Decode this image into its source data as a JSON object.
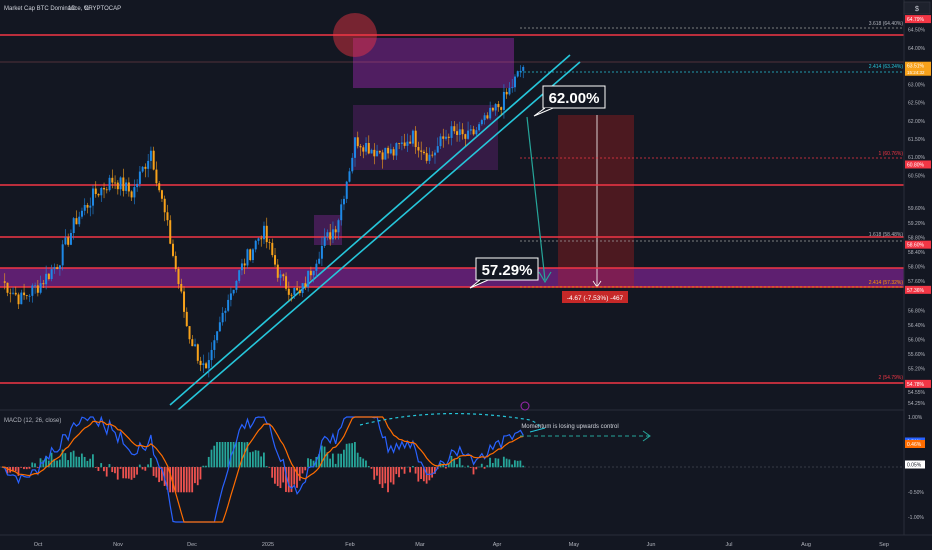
{
  "header": {
    "symbol_title": "Market Cap BTC Dominance, %",
    "interval": "1D",
    "source": "CRYPTOCAP",
    "currency_box": "$"
  },
  "price_axis": {
    "ticks": [
      "64.50%",
      "64.00%",
      "63.00%",
      "62.50%",
      "62.00%",
      "61.50%",
      "61.00%",
      "60.50%",
      "59.60%",
      "59.20%",
      "58.80%",
      "58.40%",
      "58.00%",
      "57.60%",
      "56.80%",
      "56.40%",
      "56.00%",
      "55.60%",
      "55.20%",
      "54.55%",
      "54.25%"
    ],
    "badges": [
      {
        "text": "64.79%",
        "color": "#f23645"
      },
      {
        "text": "63.51%",
        "color": "#f7a21b"
      },
      {
        "text": "60.80%",
        "color": "#f23645"
      },
      {
        "text": "58.60%",
        "color": "#f23645"
      },
      {
        "text": "57.36%",
        "color": "#f23645"
      },
      {
        "text": "54.78%",
        "color": "#f23645"
      }
    ],
    "countdown": "15:24:32"
  },
  "fib_labels": [
    "3.618 (64.40%)",
    "2.414 (63.24%)",
    "1 (60.76%)",
    "1.618 (58.48%)",
    "2.414 (57.32%)",
    "2 (54.79%)"
  ],
  "annotations": {
    "target_high": "62.00%",
    "target_low": "57.29%",
    "measure_label": "-4.67 (-7.53%) -467",
    "macd_note": "Momentum is losing upwards control"
  },
  "macd": {
    "title": "MACD (12, 26, close)",
    "ticks": [
      "1.00%",
      "0.50%",
      "-0.50%",
      "-1.00%"
    ],
    "badges": [
      {
        "text": "0.51%",
        "color": "#2962ff"
      },
      {
        "text": "0.46%",
        "color": "#ff6d00"
      },
      {
        "text": "0.05%",
        "color": "#ffffff"
      }
    ]
  },
  "time_axis": {
    "labels": [
      "Oct",
      "Nov",
      "Dec",
      "2025",
      "Feb",
      "Mar",
      "Apr",
      "May",
      "Jun",
      "Jul",
      "Aug",
      "Sep"
    ]
  },
  "colors": {
    "background": "#131722",
    "candle_up": "#1e88e5",
    "candle_down": "#f7a21b",
    "resistance": "#f23645",
    "channel": "#26c6da",
    "zone": "#9c27b0",
    "macd_line": "#2962ff",
    "signal_line": "#ff6d00",
    "hist_up": "#26a69a",
    "hist_down": "#ef5350"
  },
  "chart_data": {
    "type": "candlestick",
    "title": "Market Cap BTC Dominance, %",
    "ylabel": "%",
    "ylim": [
      54.2,
      64.6
    ],
    "horizontal_levels": [
      64.79,
      60.8,
      58.6,
      57.36,
      54.78
    ],
    "series_close": [
      {
        "date": "2024-09-24",
        "close": 57.6
      },
      {
        "date": "2024-10-01",
        "close": 57.1
      },
      {
        "date": "2024-10-08",
        "close": 57.5
      },
      {
        "date": "2024-10-15",
        "close": 58.1
      },
      {
        "date": "2024-10-22",
        "close": 59.3
      },
      {
        "date": "2024-10-29",
        "close": 60.0
      },
      {
        "date": "2024-11-05",
        "close": 60.4
      },
      {
        "date": "2024-11-12",
        "close": 60.0
      },
      {
        "date": "2024-11-19",
        "close": 61.2
      },
      {
        "date": "2024-11-26",
        "close": 58.8
      },
      {
        "date": "2024-12-03",
        "close": 56.2
      },
      {
        "date": "2024-12-10",
        "close": 55.0
      },
      {
        "date": "2024-12-17",
        "close": 57.0
      },
      {
        "date": "2024-12-24",
        "close": 58.1
      },
      {
        "date": "2024-12-31",
        "close": 59.0
      },
      {
        "date": "2025-01-07",
        "close": 57.6
      },
      {
        "date": "2025-01-14",
        "close": 57.2
      },
      {
        "date": "2025-01-21",
        "close": 58.4
      },
      {
        "date": "2025-01-28",
        "close": 59.2
      },
      {
        "date": "2025-02-04",
        "close": 61.5
      },
      {
        "date": "2025-02-11",
        "close": 61.2
      },
      {
        "date": "2025-02-18",
        "close": 61.1
      },
      {
        "date": "2025-02-25",
        "close": 61.6
      },
      {
        "date": "2025-03-04",
        "close": 61.0
      },
      {
        "date": "2025-03-11",
        "close": 61.7
      },
      {
        "date": "2025-03-18",
        "close": 61.5
      },
      {
        "date": "2025-03-25",
        "close": 62.0
      },
      {
        "date": "2025-04-01",
        "close": 62.6
      },
      {
        "date": "2025-04-08",
        "close": 63.5
      }
    ]
  }
}
